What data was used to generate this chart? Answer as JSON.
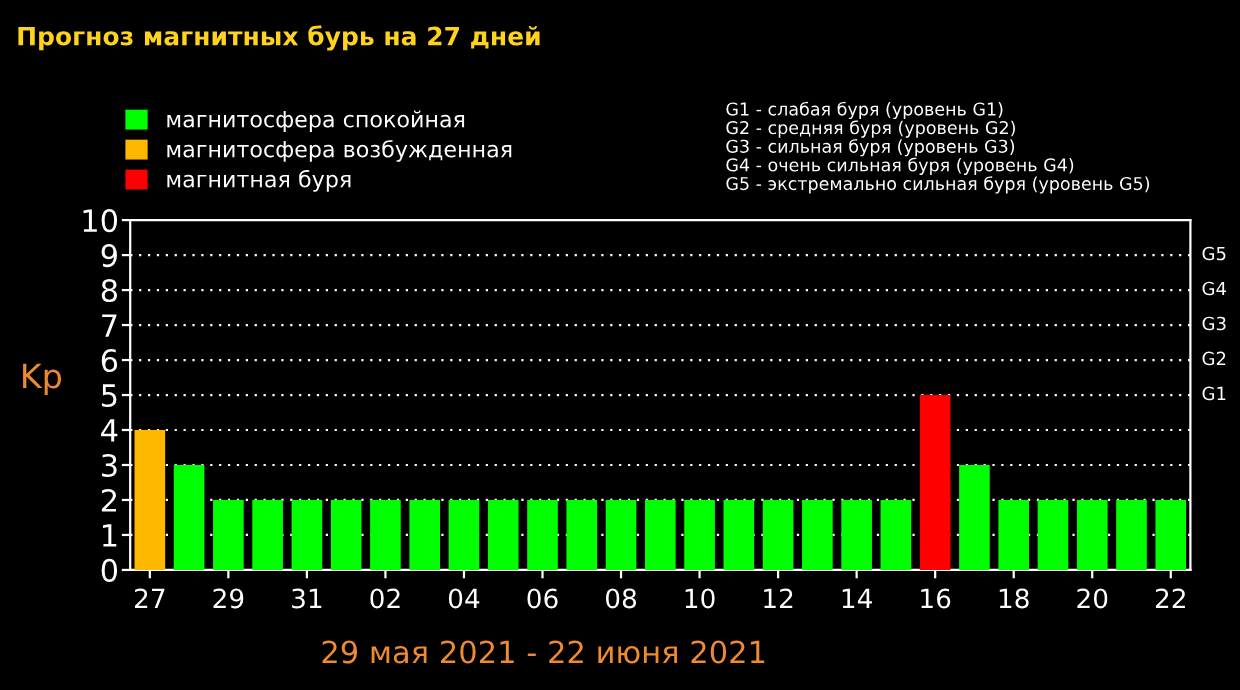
{
  "chart_data": {
    "type": "bar",
    "title": "Прогноз магнитных бурь на 27 дней",
    "xlabel": "29 мая 2021 - 22 июня 2021",
    "ylabel": "Kp",
    "categories": [
      "27",
      null,
      "29",
      null,
      "31",
      null,
      "02",
      null,
      "04",
      null,
      "06",
      null,
      "08",
      null,
      "10",
      null,
      "12",
      null,
      "14",
      null,
      "16",
      null,
      "18",
      null,
      "20",
      null,
      "22"
    ],
    "series": [
      {
        "name": "магнитосфера спокойная",
        "color": "#00ff00",
        "values": [
          null,
          3,
          2,
          2,
          2,
          2,
          2,
          2,
          2,
          2,
          2,
          2,
          2,
          2,
          2,
          2,
          2,
          2,
          2,
          2,
          null,
          3,
          2,
          2,
          2,
          2,
          2
        ]
      },
      {
        "name": "магнитосфера возбужденная",
        "color": "#ffb800",
        "values": [
          4,
          null,
          null,
          null,
          null,
          null,
          null,
          null,
          null,
          null,
          null,
          null,
          null,
          null,
          null,
          null,
          null,
          null,
          null,
          null,
          null,
          null,
          null,
          null,
          null,
          null,
          null
        ]
      },
      {
        "name": "магнитная буря",
        "color": "#ff0000",
        "values": [
          null,
          null,
          null,
          null,
          null,
          null,
          null,
          null,
          null,
          null,
          null,
          null,
          null,
          null,
          null,
          null,
          null,
          null,
          null,
          null,
          5,
          null,
          null,
          null,
          null,
          null,
          null
        ]
      }
    ],
    "ylim": [
      0,
      10
    ],
    "yticks": [
      0,
      1,
      2,
      3,
      4,
      5,
      6,
      7,
      8,
      9,
      10
    ],
    "grid": "y",
    "legend": "top left",
    "annotations": [
      "G1",
      "G2",
      "G3",
      "G4",
      "G5",
      "G1 - слабая буря (уровень G1)",
      "G2 - средняя буря (уровень G2)",
      "G3 - сильная буря (уровень G3)",
      "G4 - очень сильная буря (уровень G4)",
      "G5 - экстремально сильная буря (уровень G5)"
    ]
  }
}
